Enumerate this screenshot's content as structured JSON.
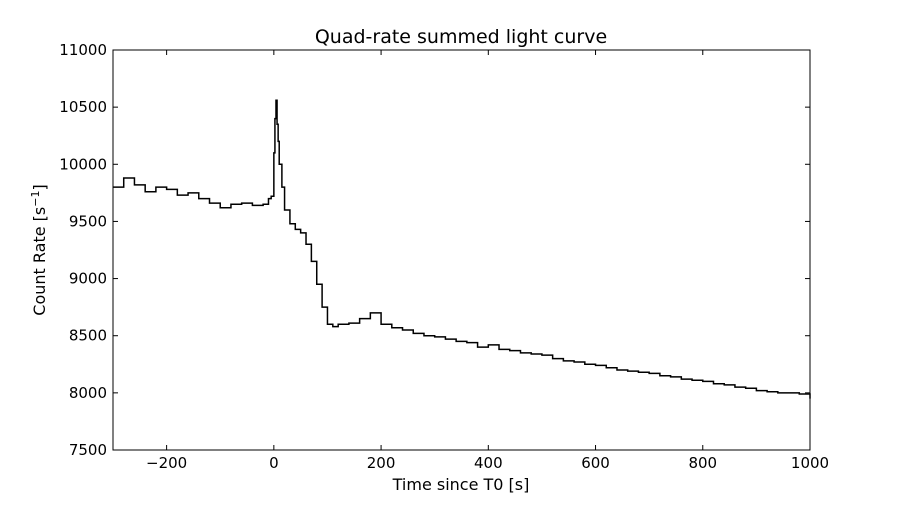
{
  "chart_data": {
    "type": "line",
    "title": "Quad-rate summed light curve",
    "xlabel": "Time since T0 [s]",
    "ylabel_main": "Count Rate [s",
    "ylabel_sup": "−1",
    "ylabel_tail": "]",
    "xlim": [
      -300,
      1000
    ],
    "ylim": [
      7500,
      11000
    ],
    "xticks": [
      -200,
      0,
      200,
      400,
      600,
      800,
      1000
    ],
    "xtick_labels": [
      "−200",
      "0",
      "200",
      "400",
      "600",
      "800",
      "1000"
    ],
    "yticks": [
      7500,
      8000,
      8500,
      9000,
      9500,
      10000,
      10500,
      11000
    ],
    "ytick_labels": [
      "7500",
      "8000",
      "8500",
      "9000",
      "9500",
      "10000",
      "10500",
      "11000"
    ],
    "grid": false,
    "line_color": "#000000",
    "series": [
      {
        "x": [
          -300,
          -280,
          -260,
          -240,
          -220,
          -200,
          -180,
          -160,
          -140,
          -120,
          -100,
          -80,
          -60,
          -40,
          -20,
          -10,
          -5,
          0,
          2,
          4,
          6,
          8,
          10,
          15,
          20,
          30,
          40,
          50,
          60,
          70,
          80,
          90,
          100,
          110,
          120,
          140,
          160,
          180,
          200,
          220,
          240,
          260,
          280,
          300,
          320,
          340,
          360,
          380,
          400,
          420,
          440,
          460,
          480,
          500,
          520,
          540,
          560,
          580,
          600,
          620,
          640,
          660,
          680,
          700,
          720,
          740,
          760,
          780,
          800,
          820,
          840,
          860,
          880,
          900,
          920,
          940,
          960,
          980,
          1000
        ],
        "y": [
          9800,
          9880,
          9820,
          9760,
          9800,
          9780,
          9730,
          9750,
          9700,
          9660,
          9620,
          9650,
          9660,
          9640,
          9650,
          9700,
          9720,
          10100,
          10400,
          10560,
          10350,
          10200,
          10000,
          9800,
          9600,
          9480,
          9430,
          9400,
          9300,
          9150,
          8950,
          8750,
          8600,
          8580,
          8600,
          8610,
          8650,
          8700,
          8600,
          8570,
          8550,
          8520,
          8500,
          8490,
          8470,
          8450,
          8440,
          8400,
          8420,
          8380,
          8370,
          8350,
          8340,
          8330,
          8300,
          8280,
          8270,
          8250,
          8240,
          8220,
          8200,
          8190,
          8180,
          8170,
          8150,
          8140,
          8120,
          8110,
          8100,
          8080,
          8070,
          8050,
          8040,
          8020,
          8010,
          8000,
          8000,
          7990,
          7950
        ]
      }
    ]
  }
}
